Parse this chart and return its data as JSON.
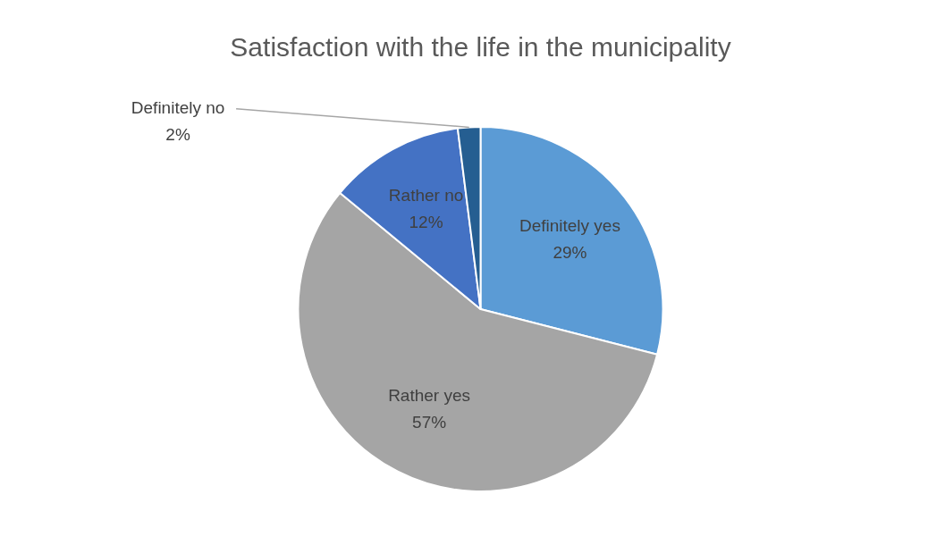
{
  "chart_data": {
    "type": "pie",
    "title": "Satisfaction with the life in the municipality",
    "categories": [
      "Definitely yes",
      "Rather yes",
      "Rather no",
      "Definitely no"
    ],
    "values": [
      29,
      57,
      12,
      2
    ],
    "colors": [
      "#5b9bd5",
      "#a5a5a5",
      "#4472c4",
      "#255e91"
    ],
    "value_labels": [
      "29%",
      "57%",
      "12%",
      "2%"
    ],
    "legend": false
  }
}
